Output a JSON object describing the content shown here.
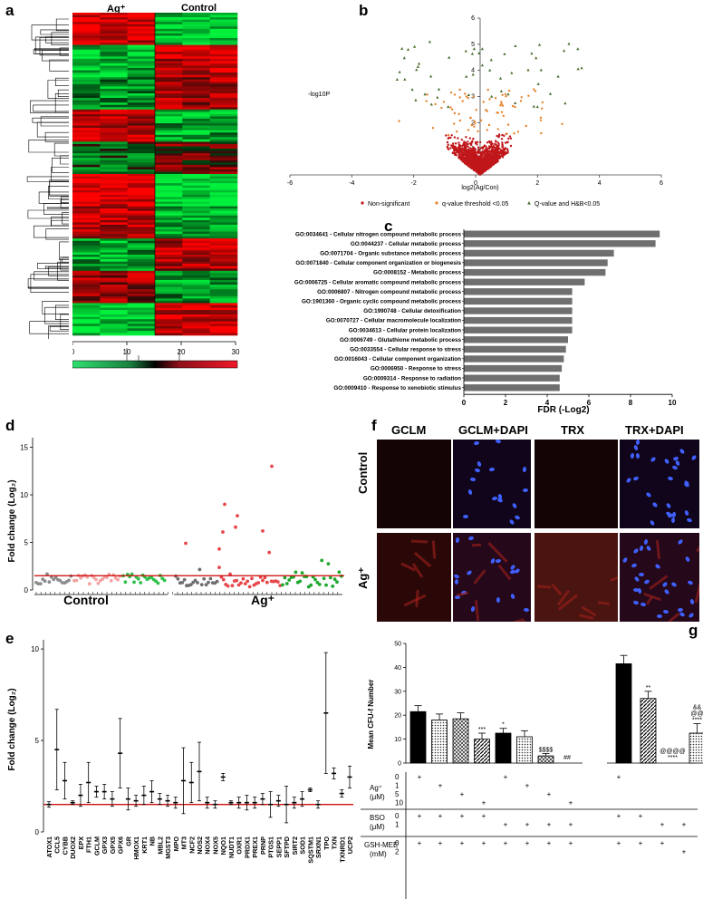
{
  "panels": {
    "a": "a",
    "b": "b",
    "c": "c",
    "d": "d",
    "e": "e",
    "f": "f",
    "g": "g"
  },
  "heatmap": {
    "groups": [
      "Ag⁺",
      "Control"
    ],
    "scale_ticks": [
      "0",
      "10",
      "20",
      "30"
    ]
  },
  "volcano": {
    "xlabel": "log2(Ag/Con)",
    "ylabel": "-log10P",
    "x_ticks": [
      "-6",
      "-4",
      "-2",
      "0",
      "2",
      "4",
      "6"
    ],
    "y_ticks": [
      "1",
      "2",
      "3",
      "4",
      "5",
      "6"
    ],
    "legend": [
      "Non-significant",
      "q-value threshold <0.05",
      "Q-value and H&B<0.05"
    ],
    "colors": {
      "nonsig": "#c0171b",
      "qval": "#e8822a",
      "hb": "#4a6d2c"
    }
  },
  "chart_data": [
    {
      "type": "bar",
      "title": "",
      "xlabel": "FDR (-Log2)",
      "ylabel": "",
      "orientation": "horizontal",
      "xlim": [
        0,
        10
      ],
      "x_ticks": [
        "0",
        "2",
        "4",
        "6",
        "8",
        "10"
      ],
      "categories": [
        "GO:0034641 - Cellular nitrogen compound metabolic process",
        "GO:0044237 - Cellular metabolic process",
        "GO:0071704 - Organic substance metabolic process",
        "GO:0071840 - Cellular component organization or biogenesis",
        "GO:0008152 - Metabolic process",
        "GO:0006725 - Cellular aromatic compound metabolic process",
        "GO:0006807 - Nitrogen compound metabolic process",
        "GO:1901360 - Organic cyclic compound metabolic process",
        "GO:1990748 - Cellular detoxification",
        "GO:0070727 - Cellular macromolecule localization",
        "GO:0034613 - Cellular protein localization",
        "GO:0006749 - Glutathione metabolic process",
        "GO:0033554 - Cellular response to stress",
        "GO:0016043 - Cellular component organization",
        "GO:0006950 - Response to stress",
        "GO:0009314 - Response to radiation",
        "GO:0009410 - Response to xenobiotic stimulus"
      ],
      "values": [
        9.4,
        9.2,
        7.2,
        6.9,
        6.8,
        5.8,
        5.2,
        5.2,
        5.2,
        5.2,
        5.2,
        5.0,
        4.9,
        4.8,
        4.7,
        4.6,
        4.6
      ]
    },
    {
      "type": "scatter",
      "title": "",
      "ylabel": "Fold change (Log₂)",
      "y_ticks": [
        "0",
        "5",
        "10",
        "15"
      ],
      "ylim": [
        0,
        16
      ],
      "groups": [
        "Control",
        "Ag⁺"
      ],
      "median_line": 1.5
    },
    {
      "type": "scatter",
      "title": "",
      "ylabel": "Fold change (Log₂)",
      "ylim": [
        0,
        10.5
      ],
      "y_ticks": [
        "0",
        "5",
        "10"
      ],
      "threshold": 1.5,
      "categories": [
        "ATOX1",
        "CCL5",
        "CYBB",
        "DUOX2",
        "EPX",
        "FTH1",
        "GCLM",
        "GPX3",
        "GPX5",
        "GPX6",
        "GR",
        "HMOX1",
        "KRT1",
        "NB",
        "MBL2",
        "MGST3",
        "MPO",
        "MT3",
        "NCF2",
        "NOS2",
        "NOX4",
        "NOX5",
        "NQO1",
        "NUDT1",
        "OXR1",
        "PRDX1",
        "PREX1",
        "PRNP",
        "PTGS1",
        "SEPP1",
        "SFTPD",
        "SIRT2",
        "SOD1",
        "SQSTM1",
        "SRXN1",
        "TPO",
        "TXN",
        "TXNRD1",
        "UCP2"
      ],
      "values": [
        1.5,
        4.5,
        2.8,
        1.6,
        2.0,
        2.7,
        2.2,
        2.2,
        1.8,
        4.3,
        1.8,
        1.7,
        2.0,
        2.2,
        1.8,
        1.7,
        1.6,
        2.8,
        2.7,
        3.3,
        1.6,
        1.5,
        3.0,
        1.6,
        1.6,
        1.6,
        1.6,
        1.8,
        1.5,
        1.7,
        1.5,
        1.6,
        1.8,
        2.3,
        1.5,
        6.5,
        3.2,
        2.1,
        3.0
      ],
      "err": [
        0.15,
        2.2,
        1.0,
        0.1,
        0.6,
        1.1,
        0.3,
        0.4,
        0.4,
        1.9,
        0.6,
        0.3,
        0.5,
        0.6,
        0.3,
        0.3,
        0.3,
        1.8,
        1.1,
        1.6,
        0.3,
        0.2,
        0.2,
        0.1,
        0.3,
        0.4,
        0.3,
        0.3,
        0.7,
        0.3,
        1.0,
        0.3,
        0.4,
        0.1,
        0.2,
        3.3,
        0.3,
        0.2,
        0.6
      ]
    },
    {
      "type": "bar",
      "title": "",
      "ylabel": "Mean CFU-f Number",
      "ylim": [
        0,
        50
      ],
      "y_ticks": [
        "0",
        "10",
        "20",
        "30",
        "40",
        "50"
      ],
      "groups": [
        {
          "values": [
            21.5,
            18,
            18.5,
            10,
            12.5,
            11,
            3,
            0
          ],
          "err": [
            2.5,
            2.5,
            2.5,
            2.5,
            2,
            2.5,
            1,
            0
          ],
          "patterns": [
            "solid",
            "dots",
            "cross",
            "hatch",
            "solid",
            "dots",
            "cross",
            "hatch"
          ],
          "annot": [
            "",
            "",
            "",
            "***",
            "*",
            "",
            "$$$$",
            "##"
          ]
        },
        {
          "values": [
            41.5,
            27,
            0,
            12.5
          ],
          "err": [
            3.5,
            3,
            0,
            4
          ],
          "patterns": [
            "solid",
            "hatch",
            "none",
            "dots"
          ],
          "annot": [
            "",
            "**",
            "@@@@\n****",
            "&&\n@@\n****"
          ]
        }
      ]
    }
  ],
  "microscopy": {
    "columns": [
      "GCLM",
      "GCLM+DAPI",
      "TRX",
      "TRX+DAPI"
    ],
    "rows": [
      "Control",
      "Ag⁺"
    ]
  },
  "table_g": {
    "rows": [
      {
        "label": "Ag⁺",
        "sub": "(μM)",
        "levels": [
          "0",
          "1",
          "5",
          "10"
        ]
      },
      {
        "label": "BSO",
        "sub": "(μM)",
        "levels": [
          "0",
          "1"
        ]
      },
      {
        "label": "GSH-MEE",
        "sub": "(mM)",
        "levels": [
          "0",
          "2"
        ]
      }
    ],
    "mark": "+"
  }
}
